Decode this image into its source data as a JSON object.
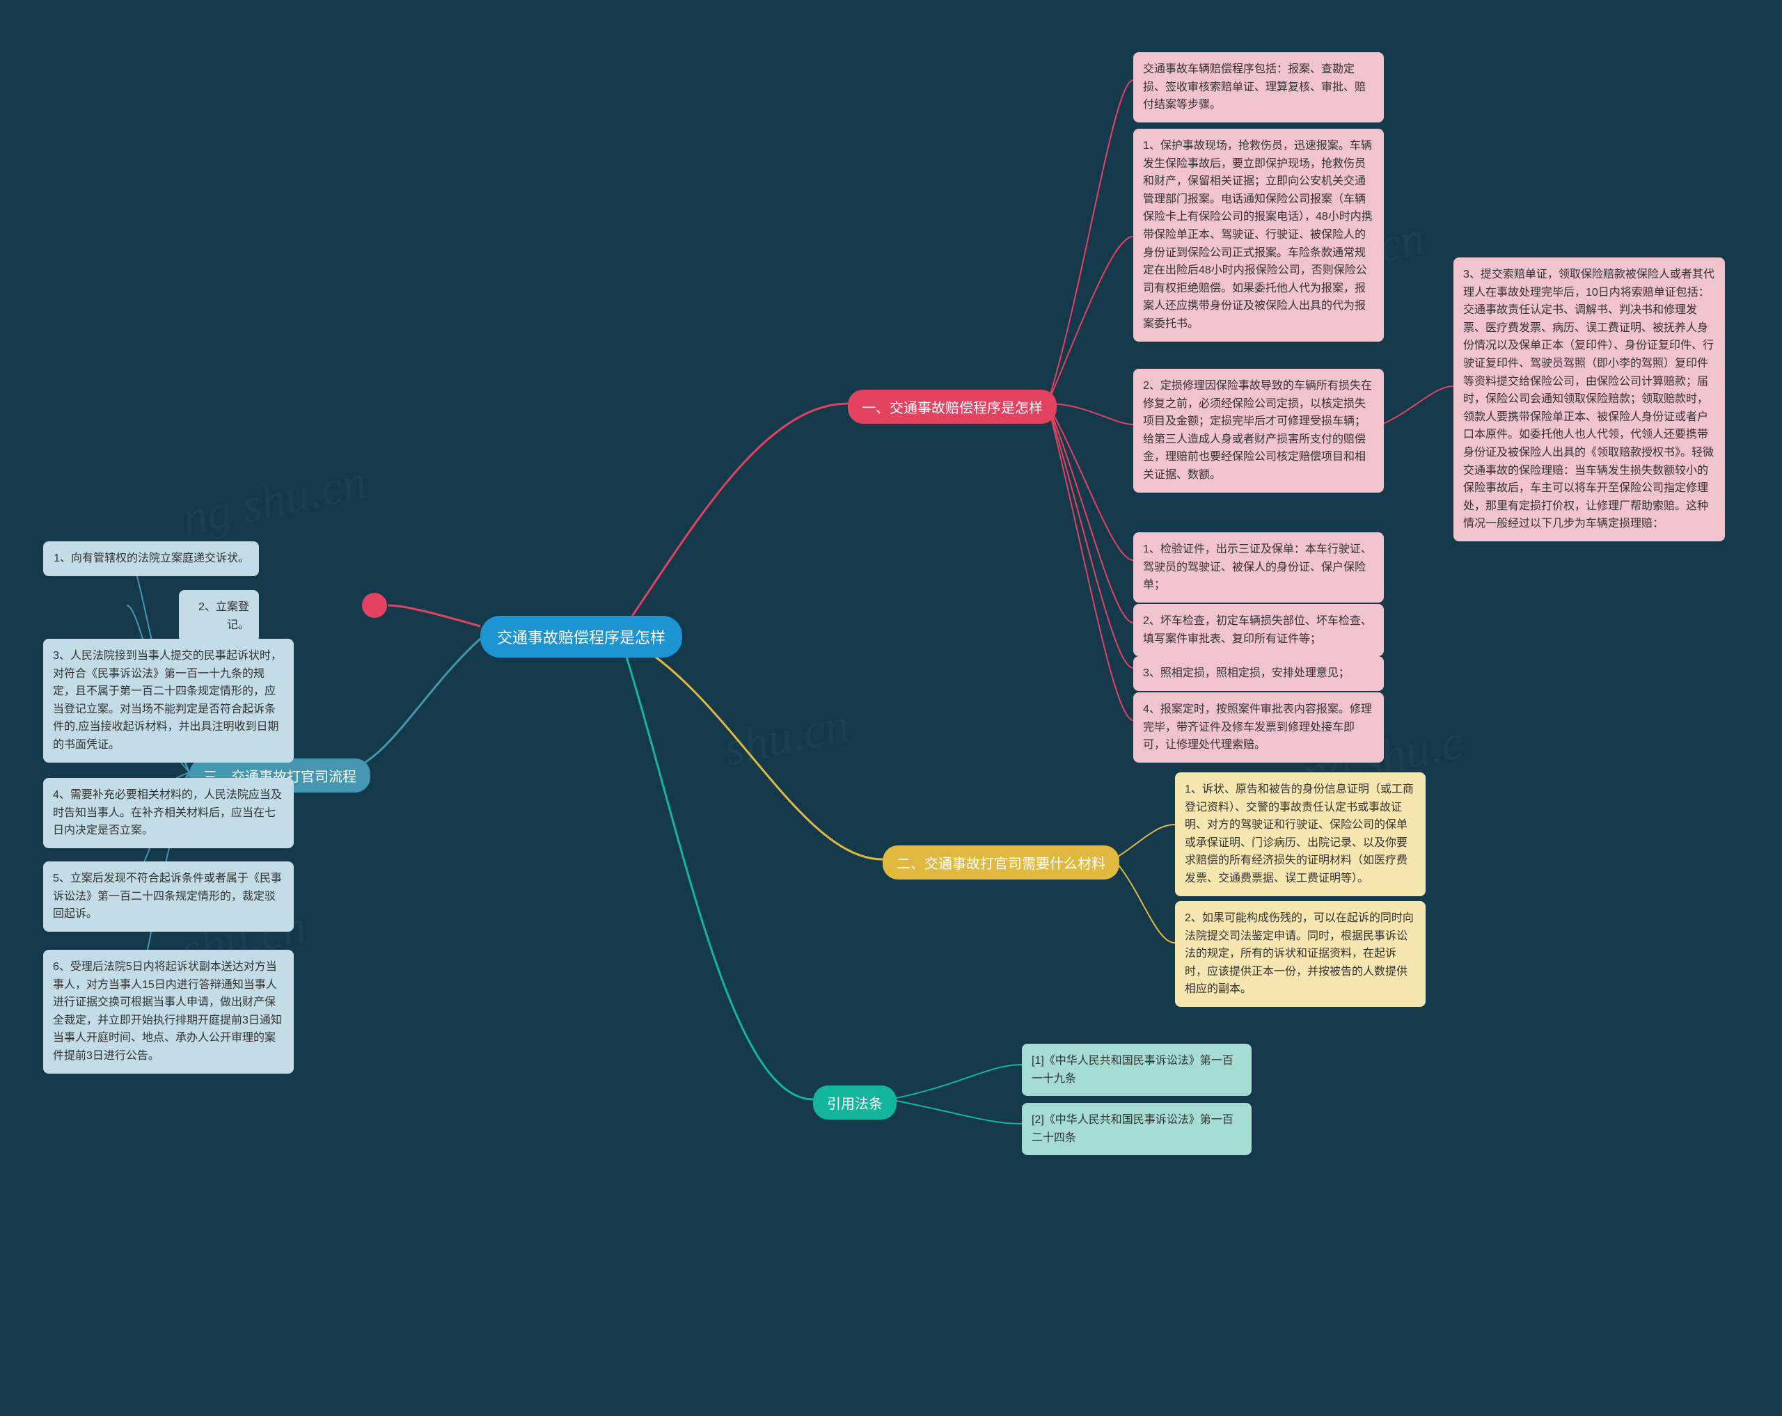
{
  "colors": {
    "background": "#13394a",
    "root_bg": "#1d95d3",
    "branch1_bg": "#e34360",
    "branch2_bg": "#e0b93e",
    "branch3_bg": "#13b59c",
    "branch4_bg": "#4596b0",
    "dot_bg": "#e34360",
    "leaf_pink": "#f1c3cc",
    "leaf_yellow": "#f6e7b0",
    "leaf_teal": "#a5dcd3",
    "leaf_blue": "#c3dce5",
    "edge_pink": "#e34360",
    "edge_yellow": "#e0b93e",
    "edge_teal": "#13b59c",
    "edge_blue": "#4596b0"
  },
  "root": {
    "label": "交通事故赔偿程序是怎样"
  },
  "dot": {},
  "branch1": {
    "label": "一、交通事故赔偿程序是怎样",
    "leaf1": "交通事故车辆赔偿程序包括：报案、查勘定损、签收审核索赔单证、理算复核、审批、赔付结案等步骤。",
    "leaf2": "1、保护事故现场，抢救伤员，迅速报案。车辆发生保险事故后，要立即保护现场，抢救伤员和财产，保留相关证据；立即向公安机关交通管理部门报案。电话通知保险公司报案（车辆保险卡上有保险公司的报案电话），48小时内携带保险单正本、驾驶证、行驶证、被保险人的身份证到保险公司正式报案。车险条款通常规定在出险后48小时内报保险公司，否则保险公司有权拒绝赔偿。如果委托他人代为报案，报案人还应携带身份证及被保险人出具的代为报案委托书。",
    "leaf3": "2、定损修理因保险事故导致的车辆所有损失在修复之前，必须经保险公司定损，以核定损失项目及金额；定损完毕后才可修理受损车辆；给第三人造成人身或者财产损害所支付的赔偿金，理赔前也要经保险公司核定赔偿项目和相关证据、数额。",
    "leaf3_sub": "3、提交索赔单证，领取保险赔款被保险人或者其代理人在事故处理完毕后，10日内将索赔单证包括：交通事故责任认定书、调解书、判决书和修理发票、医疗费发票、病历、误工费证明、被抚养人身份情况以及保单正本（复印件）、身份证复印件、行驶证复印件、驾驶员驾照（即小李的驾照）复印件等资料提交给保险公司，由保险公司计算赔款；届时，保险公司会通知领取保险赔款；领取赔款时，领款人要携带保险单正本、被保险人身份证或者户口本原件。如委托他人也人代领，代领人还要携带身份证及被保险人出具的《领取赔款授权书》。轻微交通事故的保险理赔：当车辆发生损失数额较小的保险事故后，车主可以将车开至保险公司指定修理处，那里有定损打价权，让修理厂帮助索赔。这种情况一般经过以下几步为车辆定损理赔：",
    "leaf4": "1、检验证件，出示三证及保单：本车行驶证、驾驶员的驾驶证、被保人的身份证、保户保险单；",
    "leaf5": "2、坏车检查，初定车辆损失部位、坏车检查、填写案件审批表、复印所有证件等；",
    "leaf6": "3、照相定损，照相定损，安排处理意见；",
    "leaf7": "4、报案定时，按照案件审批表内容报案。修理完毕，带齐证件及修车发票到修理处接车即可，让修理处代理索赔。"
  },
  "branch2": {
    "label": "二、交通事故打官司需要什么材料",
    "leaf1": "1、诉状、原告和被告的身份信息证明（或工商登记资料）、交警的事故责任认定书或事故证明、对方的驾驶证和行驶证、保险公司的保单或承保证明、门诊病历、出院记录、以及你要求赔偿的所有经济损失的证明材料（如医疗费发票、交通费票据、误工费证明等）。",
    "leaf2": "2、如果可能构成伤残的，可以在起诉的同时向法院提交司法鉴定申请。同时，根据民事诉讼法的规定，所有的诉状和证据资料，在起诉时，应该提供正本一份，并按被告的人数提供相应的副本。"
  },
  "branch3": {
    "label": "引用法条",
    "leaf1": "[1]《中华人民共和国民事诉讼法》第一百一十九条",
    "leaf2": "[2]《中华人民共和国民事诉讼法》第一百二十四条"
  },
  "branch4": {
    "label": "三、交通事故打官司流程",
    "leaf1": "1、向有管辖权的法院立案庭递交诉状。",
    "leaf2": "2、立案登记。",
    "leaf3": "3、人民法院接到当事人提交的民事起诉状时，对符合《民事诉讼法》第一百一十九条的规定，且不属于第一百二十四条规定情形的，应当登记立案。对当场不能判定是否符合起诉条件的,应当接收起诉材料，并出具注明收到日期的书面凭证。",
    "leaf4": "4、需要补充必要相关材料的，人民法院应当及时告知当事人。在补齐相关材料后，应当在七日内决定是否立案。",
    "leaf5": "5、立案后发现不符合起诉条件或者属于《民事诉讼法》第一百二十四条规定情形的，裁定驳回起诉。",
    "leaf6": "6、受理后法院5日内将起诉状副本送达对方当事人，对方当事人15日内进行答辩通知当事人进行证据交换可根据当事人申请，做出财产保全裁定，并立即开始执行排期开庭提前3日通知当事人开庭时间、地点、承办人公开审理的案件提前3日进行公告。"
  }
}
